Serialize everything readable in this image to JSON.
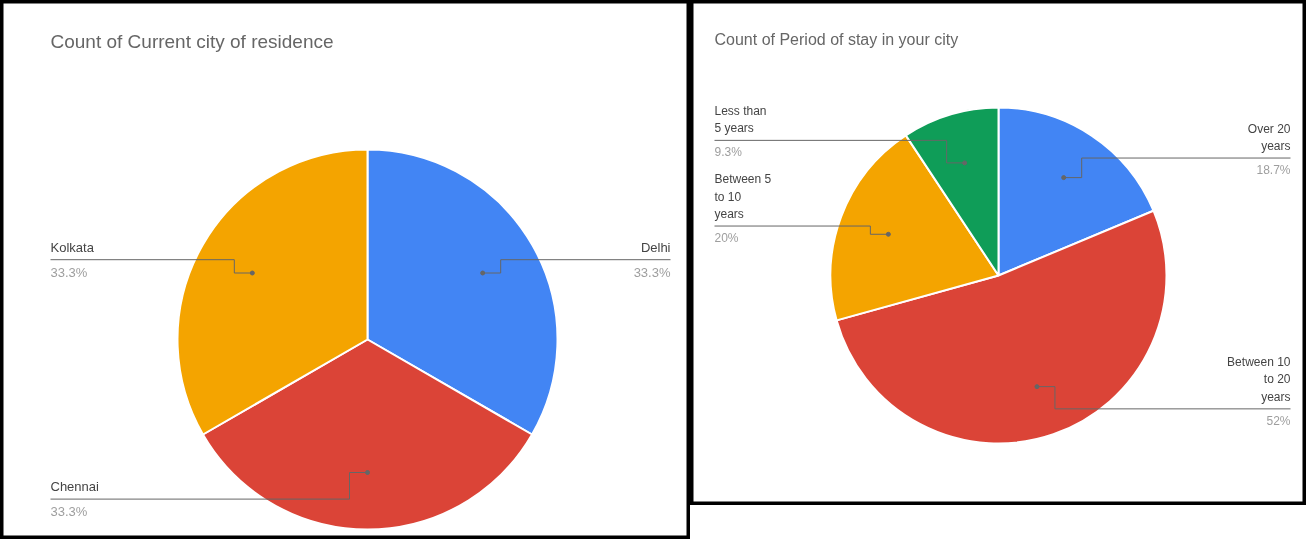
{
  "chart_data": [
    {
      "type": "pie",
      "title": "Count of Current city of residence",
      "categories": [
        "Delhi",
        "Chennai",
        "Kolkata"
      ],
      "values": [
        33.3,
        33.3,
        33.3
      ],
      "colors": [
        "#4285f4",
        "#db4437",
        "#f4a400"
      ],
      "value_labels": [
        "33.3%",
        "33.3%",
        "33.3%"
      ]
    },
    {
      "type": "pie",
      "title": "Count of Period of stay in your city",
      "categories": [
        "Over 20 years",
        "Between 10 to 20 years",
        "Between 5 to 10 years",
        "Less than 5 years"
      ],
      "values": [
        18.7,
        52,
        20,
        9.3
      ],
      "colors": [
        "#4285f4",
        "#db4437",
        "#f4a400",
        "#0f9d58"
      ],
      "value_labels": [
        "18.7%",
        "52%",
        "20%",
        "9.3%"
      ]
    }
  ]
}
